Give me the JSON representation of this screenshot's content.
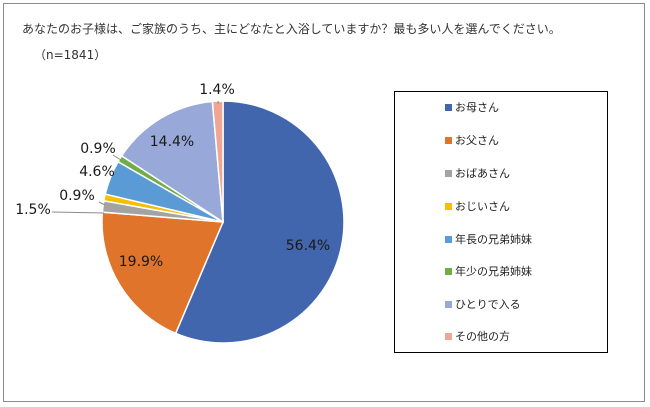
{
  "chart_data": {
    "type": "pie",
    "title": "あなたのお子様は、ご家族のうち、主にどなたと入浴していますか？最も多い人を選んでください。",
    "subtitle": "（n=1841）",
    "labels": [
      "お母さん",
      "お父さん",
      "おばあさん",
      "おじいさん",
      "年長の兄弟姉妹",
      "年少の兄弟姉妹",
      "ひとりで入る",
      "その他の方"
    ],
    "values": [
      56.4,
      19.9,
      1.5,
      0.9,
      4.6,
      0.9,
      14.4,
      1.4
    ],
    "value_labels": [
      "56.4%",
      "19.9%",
      "1.5%",
      "0.9%",
      "4.6%",
      "0.9%",
      "14.4%",
      "1.4%"
    ],
    "colors": [
      "#4166ad",
      "#e0742b",
      "#a3a3a3",
      "#f5bf00",
      "#5b9bd5",
      "#70ad47",
      "#98a8d8",
      "#f0a694"
    ],
    "start_angle": "12 o'clock",
    "direction": "clockwise",
    "legend_position": "right"
  }
}
